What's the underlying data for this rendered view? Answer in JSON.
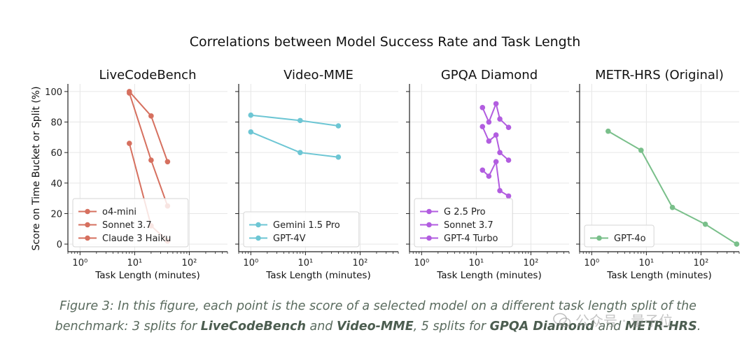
{
  "figure_title": "Correlations between Model Success Rate and Task Length",
  "chart_data": [
    {
      "type": "line",
      "title": "LiveCodeBench",
      "xlabel": "Task Length (minutes)",
      "ylabel": "Score on Time Bucket or Split (%)",
      "xscale": "log",
      "xlim": [
        0.6,
        500
      ],
      "ylim": [
        -5,
        105
      ],
      "xticks": [
        "10⁰",
        "10¹",
        "10²"
      ],
      "yticks": [
        "0",
        "20",
        "40",
        "60",
        "80",
        "100"
      ],
      "legend_position": "lower-left",
      "series": [
        {
          "name": "o4-mini",
          "color": "#d6705f",
          "x": [
            8,
            20,
            40
          ],
          "y": [
            100,
            84,
            54
          ]
        },
        {
          "name": "Sonnet 3.7",
          "color": "#d6705f",
          "x": [
            8,
            20,
            40
          ],
          "y": [
            99,
            55,
            25
          ]
        },
        {
          "name": "Claude 3 Haiku",
          "color": "#d6705f",
          "x": [
            8,
            20,
            40
          ],
          "y": [
            66,
            12,
            2
          ]
        }
      ]
    },
    {
      "type": "line",
      "title": "Video-MME",
      "xlabel": "Task Length (minutes)",
      "xscale": "log",
      "xlim": [
        0.6,
        500
      ],
      "ylim": [
        -5,
        105
      ],
      "xticks": [
        "10⁰",
        "10¹",
        "10²"
      ],
      "legend_position": "lower-left",
      "series": [
        {
          "name": "Gemini 1.5 Pro",
          "color": "#6dc6d4",
          "x": [
            1,
            8,
            40
          ],
          "y": [
            84.5,
            81,
            77.5
          ]
        },
        {
          "name": "GPT-4V",
          "color": "#6dc6d4",
          "x": [
            1,
            8,
            40
          ],
          "y": [
            73.5,
            60,
            57
          ]
        }
      ]
    },
    {
      "type": "line",
      "title": "GPQA Diamond",
      "xlabel": "Task Length (minutes)",
      "xscale": "log",
      "xlim": [
        0.6,
        500
      ],
      "ylim": [
        -5,
        105
      ],
      "xticks": [
        "10⁰",
        "10¹",
        "10²"
      ],
      "legend_position": "lower-left",
      "series": [
        {
          "name": "G 2.5 Pro",
          "color": "#b25de0",
          "x": [
            13,
            17,
            23,
            27,
            39
          ],
          "y": [
            89.5,
            80,
            92,
            82,
            76.5
          ]
        },
        {
          "name": "Sonnet 3.7",
          "color": "#b25de0",
          "x": [
            13,
            17,
            23,
            27,
            39
          ],
          "y": [
            77,
            67.5,
            71.5,
            60,
            55
          ]
        },
        {
          "name": "GPT-4 Turbo",
          "color": "#b25de0",
          "x": [
            13,
            17,
            23,
            27,
            39
          ],
          "y": [
            48.5,
            44.5,
            54,
            35,
            31.5
          ]
        }
      ]
    },
    {
      "type": "line",
      "title": "METR-HRS (Original)",
      "xlabel": "Task Length (minutes)",
      "xscale": "log",
      "xlim": [
        0.6,
        500
      ],
      "ylim": [
        -5,
        105
      ],
      "xticks": [
        "10⁰",
        "10¹",
        "10²"
      ],
      "legend_position": "lower-left",
      "series": [
        {
          "name": "GPT-4o",
          "color": "#79bf8a",
          "x": [
            2,
            8,
            30,
            120,
            450
          ],
          "y": [
            74,
            61.5,
            24,
            13,
            0
          ]
        }
      ]
    }
  ],
  "caption": {
    "line1": "Figure 3: In this figure, each point is the score of a selected model on a different task length split of the",
    "line2_a": "benchmark: 3 splits for ",
    "b1": "LiveCodeBench",
    "line2_b": " and ",
    "b2": "Video-MME",
    "line2_c": ", 5 splits for ",
    "b3": "GPQA Diamond",
    "line2_d": " and ",
    "b4": "METR-HRS",
    "line2_e": "."
  },
  "watermark": {
    "text": "公众号 · 量子位"
  }
}
